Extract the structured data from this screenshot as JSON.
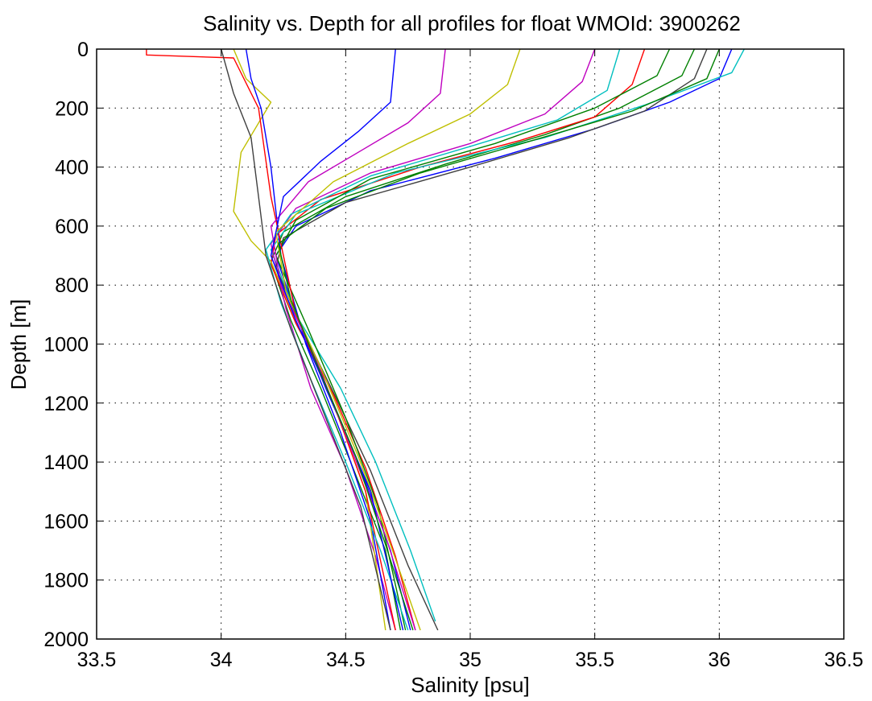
{
  "chart_data": {
    "type": "line",
    "title": "Salinity vs. Depth for all profiles for float WMOId: 3900262",
    "xlabel": "Salinity [psu]",
    "ylabel": "Depth [m]",
    "xlim": [
      33.5,
      36.5
    ],
    "ylim": [
      0,
      2000
    ],
    "y_reversed": true,
    "grid": true,
    "legend": "none",
    "xticks": [
      33.5,
      34,
      34.5,
      35,
      35.5,
      36,
      36.5
    ],
    "yticks": [
      0,
      200,
      400,
      600,
      800,
      1000,
      1200,
      1400,
      1600,
      1800,
      2000
    ],
    "colors": [
      "#0000ff",
      "#008000",
      "#ff0000",
      "#00bfbf",
      "#bf00bf",
      "#bfbf00",
      "#404040"
    ],
    "series": [
      {
        "x": [
          36.05,
          36.0,
          35.8,
          35.5,
          35.1,
          34.6,
          34.3,
          34.22,
          34.3,
          34.42,
          34.55,
          34.68,
          34.76
        ],
        "y": [
          0,
          100,
          180,
          270,
          370,
          480,
          600,
          700,
          900,
          1150,
          1400,
          1700,
          1970
        ]
      },
      {
        "x": [
          35.9,
          35.85,
          35.6,
          35.3,
          34.9,
          34.5,
          34.25,
          34.2,
          34.28,
          34.4,
          34.52,
          34.66,
          34.72
        ],
        "y": [
          0,
          90,
          200,
          290,
          390,
          500,
          620,
          720,
          920,
          1150,
          1400,
          1700,
          1970
        ]
      },
      {
        "x": [
          35.7,
          35.65,
          35.5,
          35.2,
          34.8,
          34.4,
          34.22,
          34.2,
          34.3,
          34.45,
          34.58,
          34.7,
          34.78
        ],
        "y": [
          0,
          120,
          230,
          310,
          400,
          510,
          630,
          730,
          930,
          1170,
          1420,
          1720,
          1970
        ]
      },
      {
        "x": [
          36.1,
          36.05,
          35.7,
          35.3,
          34.7,
          34.3,
          34.2,
          34.3,
          34.48,
          34.62,
          34.76,
          34.86
        ],
        "y": [
          0,
          80,
          190,
          300,
          420,
          560,
          680,
          900,
          1150,
          1400,
          1700,
          1940
        ]
      },
      {
        "x": [
          35.5,
          35.45,
          35.3,
          35.0,
          34.6,
          34.3,
          34.2,
          34.26,
          34.36,
          34.5,
          34.62,
          34.7
        ],
        "y": [
          0,
          110,
          220,
          320,
          420,
          540,
          660,
          880,
          1150,
          1420,
          1720,
          1970
        ]
      },
      {
        "x": [
          34.05,
          34.1,
          34.2,
          34.08,
          34.05,
          34.12,
          34.2,
          34.3,
          34.45,
          34.58,
          34.66
        ],
        "y": [
          0,
          100,
          180,
          350,
          550,
          650,
          720,
          920,
          1200,
          1500,
          1970
        ]
      },
      {
        "x": [
          35.95,
          35.9,
          35.7,
          35.4,
          35.0,
          34.5,
          34.25,
          34.22,
          34.32,
          34.46,
          34.6,
          34.75,
          34.87
        ],
        "y": [
          0,
          100,
          210,
          300,
          400,
          520,
          640,
          740,
          940,
          1180,
          1430,
          1750,
          1970
        ]
      },
      {
        "x": [
          34.1,
          34.12,
          34.16,
          34.2,
          34.24,
          34.34,
          34.48,
          34.6,
          34.68
        ],
        "y": [
          0,
          100,
          200,
          400,
          700,
          1000,
          1300,
          1600,
          1970
        ]
      },
      {
        "x": [
          35.8,
          35.75,
          35.5,
          35.1,
          34.6,
          34.3,
          34.22,
          34.35,
          34.5,
          34.63,
          34.74
        ],
        "y": [
          0,
          90,
          200,
          320,
          440,
          580,
          700,
          950,
          1250,
          1550,
          1970
        ]
      },
      {
        "x": [
          33.7,
          33.7,
          34.05,
          34.15,
          34.2,
          34.3,
          34.45,
          34.58,
          34.7
        ],
        "y": [
          0,
          20,
          30,
          200,
          500,
          900,
          1200,
          1500,
          1970
        ]
      },
      {
        "x": [
          35.6,
          35.55,
          35.35,
          35.0,
          34.6,
          34.28,
          34.18,
          34.24,
          34.36,
          34.5,
          34.64,
          34.75
        ],
        "y": [
          0,
          140,
          240,
          330,
          430,
          560,
          680,
          860,
          1120,
          1400,
          1700,
          1970
        ]
      },
      {
        "x": [
          34.9,
          34.88,
          34.75,
          34.55,
          34.35,
          34.2,
          34.24,
          34.38,
          34.52,
          34.66,
          34.78
        ],
        "y": [
          0,
          150,
          250,
          350,
          450,
          600,
          800,
          1050,
          1350,
          1650,
          1970
        ]
      },
      {
        "x": [
          35.2,
          35.15,
          35.0,
          34.75,
          34.45,
          34.22,
          34.26,
          34.4,
          34.55,
          34.68,
          34.8
        ],
        "y": [
          0,
          120,
          220,
          320,
          450,
          620,
          820,
          1080,
          1380,
          1680,
          1970
        ]
      },
      {
        "x": [
          34.0,
          34.05,
          34.12,
          34.15,
          34.18,
          34.28,
          34.42,
          34.56,
          34.68
        ],
        "y": [
          0,
          150,
          300,
          500,
          700,
          950,
          1250,
          1550,
          1970
        ]
      },
      {
        "x": [
          34.7,
          34.68,
          34.55,
          34.4,
          34.25,
          34.2,
          34.3,
          34.45,
          34.6,
          34.73
        ],
        "y": [
          0,
          180,
          280,
          380,
          500,
          700,
          920,
          1200,
          1500,
          1970
        ]
      },
      {
        "x": [
          36.0,
          35.95,
          35.65,
          35.25,
          34.8,
          34.42,
          34.23,
          34.28,
          34.4,
          34.54,
          34.66,
          34.77
        ],
        "y": [
          0,
          100,
          210,
          310,
          420,
          540,
          660,
          850,
          1100,
          1380,
          1680,
          1970
        ]
      }
    ]
  }
}
